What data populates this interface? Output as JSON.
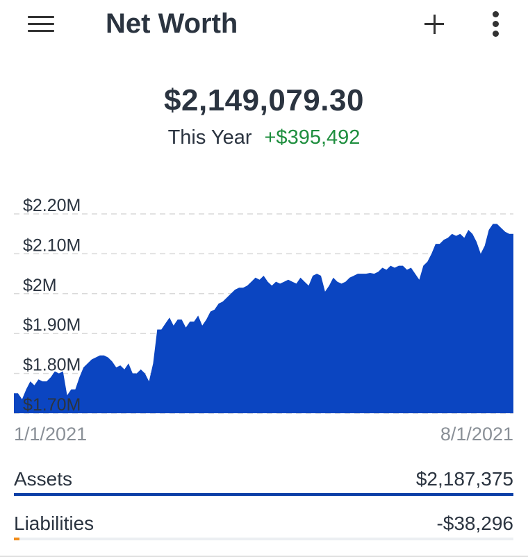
{
  "header": {
    "title": "Net Worth"
  },
  "summary": {
    "total": "$2,149,079.30",
    "period_label": "This Year",
    "period_change": "+$395,492"
  },
  "chart_data": {
    "type": "area",
    "ytick_labels": [
      "$2.20M",
      "$2.10M",
      "$2M",
      "$1.90M",
      "$1.80M",
      "$1.70M"
    ],
    "ytick_values": [
      2200000,
      2100000,
      2000000,
      1900000,
      1800000,
      1700000
    ],
    "ylim": [
      1700000,
      2200000
    ],
    "x_start_label": "1/1/2021",
    "x_end_label": "8/1/2021",
    "grid": true,
    "fill_color": "#0b45c1",
    "values": [
      1750000,
      1750000,
      1735000,
      1760000,
      1780000,
      1770000,
      1785000,
      1780000,
      1780000,
      1790000,
      1805000,
      1800000,
      1805000,
      1745000,
      1760000,
      1760000,
      1790000,
      1815000,
      1825000,
      1835000,
      1840000,
      1845000,
      1845000,
      1840000,
      1830000,
      1815000,
      1820000,
      1810000,
      1825000,
      1800000,
      1800000,
      1810000,
      1800000,
      1780000,
      1825000,
      1910000,
      1910000,
      1925000,
      1940000,
      1920000,
      1935000,
      1935000,
      1915000,
      1930000,
      1930000,
      1945000,
      1920000,
      1935000,
      1955000,
      1960000,
      1975000,
      1980000,
      1990000,
      2000000,
      2010000,
      2015000,
      2015000,
      2020000,
      2030000,
      2040000,
      2035000,
      2045000,
      2030000,
      2020000,
      2030000,
      2025000,
      2030000,
      2035000,
      2030000,
      2025000,
      2040000,
      2030000,
      2020000,
      2045000,
      2050000,
      2045000,
      2005000,
      2020000,
      2040000,
      2030000,
      2025000,
      2030000,
      2040000,
      2045000,
      2050000,
      2050000,
      2050000,
      2052000,
      2050000,
      2055000,
      2065000,
      2060000,
      2070000,
      2065000,
      2070000,
      2070000,
      2060000,
      2065000,
      2050000,
      2035000,
      2070000,
      2080000,
      2100000,
      2125000,
      2125000,
      2135000,
      2140000,
      2150000,
      2145000,
      2150000,
      2140000,
      2160000,
      2150000,
      2130000,
      2100000,
      2120000,
      2160000,
      2175000,
      2175000,
      2165000,
      2155000,
      2150000,
      2150000
    ]
  },
  "accounts": {
    "assets_label": "Assets",
    "assets_value": "$2,187,375",
    "assets_share": 1.0,
    "assets_color": "#0b3ea6",
    "liabilities_label": "Liabilities",
    "liabilities_value": "-$38,296",
    "liabilities_share": 0.011,
    "liabilities_color": "#f08c1a"
  },
  "icons": [
    "menu-icon",
    "plus-icon",
    "more-vert-icon"
  ]
}
